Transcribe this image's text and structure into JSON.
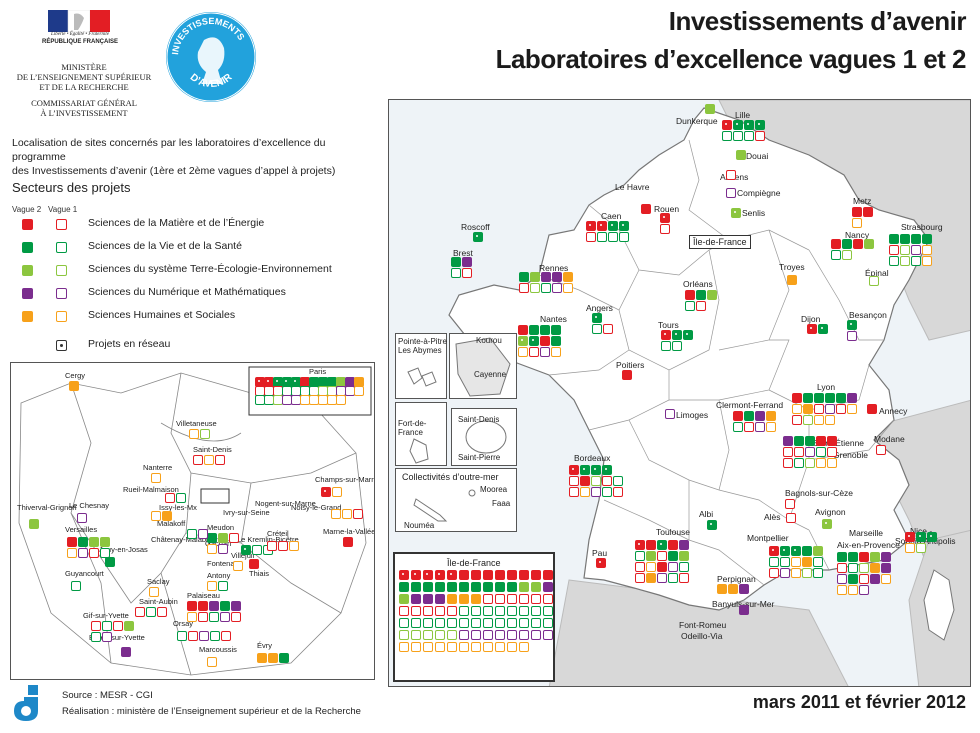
{
  "header": {
    "title_line1": "Investissements d’avenir",
    "title_line2": "Laboratoires d’excellence vagues 1 et 2",
    "republique": "RÉPUBLIQUE FRANÇAISE",
    "motto": "Liberté • Égalité • Fraternité",
    "ministry_lines": [
      "MINISTÈRE",
      "DE L’ENSEIGNEMENT SUPÉRIEUR",
      "ET DE LA RECHERCHE",
      "COMMISSARIAT GÉNÉRAL",
      "À L’INVESTISSEMENT"
    ],
    "badge_text_top": "INVESTISSEMENTS",
    "badge_text_bottom": "D’AVENIR"
  },
  "intro": {
    "line1": "Localisation de sites concernés par les laboratoires d’excellence du programme",
    "line2": "des Investissements d’avenir (1ère et 2ème vagues d’appel à projets)"
  },
  "legend": {
    "title": "Secteurs des projets",
    "vague2": "Vague 2",
    "vague1": "Vague 1",
    "items": [
      {
        "label": "Sciences de la Matière et de l’Énergie",
        "color": "#e31e24"
      },
      {
        "label": "Sciences de la Vie et de la Santé",
        "color": "#009a44"
      },
      {
        "label": "Sciences du système Terre-Écologie-Environnement",
        "color": "#8cc63f"
      },
      {
        "label": "Sciences du Numérique et Mathématiques",
        "color": "#7b2d8e"
      },
      {
        "label": "Sciences Humaines et Sociales",
        "color": "#f7a11a"
      }
    ],
    "network": "Projets en réseau"
  },
  "footer": {
    "source": "Source : MESR - CGI",
    "realisation": "Réalisation : ministère de l’Enseignement supérieur et de la Recherche",
    "date": "mars 2011 et février 2012"
  },
  "map": {
    "cities": [
      {
        "name": "Lille"
      },
      {
        "name": "Dunkerque"
      },
      {
        "name": "Douai"
      },
      {
        "name": "Amiens"
      },
      {
        "name": "Compiègne"
      },
      {
        "name": "Senlis"
      },
      {
        "name": "Le Havre"
      },
      {
        "name": "Rouen"
      },
      {
        "name": "Caen"
      },
      {
        "name": "Roscoff"
      },
      {
        "name": "Brest"
      },
      {
        "name": "Rennes"
      },
      {
        "name": "Metz"
      },
      {
        "name": "Strasbourg"
      },
      {
        "name": "Nancy"
      },
      {
        "name": "Épinal"
      },
      {
        "name": "Troyes"
      },
      {
        "name": "Orléans"
      },
      {
        "name": "Angers"
      },
      {
        "name": "Nantes"
      },
      {
        "name": "Tours"
      },
      {
        "name": "Dijon"
      },
      {
        "name": "Besançon"
      },
      {
        "name": "Poitiers"
      },
      {
        "name": "Lyon"
      },
      {
        "name": "Annecy"
      },
      {
        "name": "Limoges"
      },
      {
        "name": "Clermont-Ferrand"
      },
      {
        "name": "Modane"
      },
      {
        "name": "Saint-Étienne"
      },
      {
        "name": "Grenoble"
      },
      {
        "name": "Bordeaux"
      },
      {
        "name": "Bagnols-sur-Cèze"
      },
      {
        "name": "Avignon"
      },
      {
        "name": "Alès"
      },
      {
        "name": "Albi"
      },
      {
        "name": "Nice -"
      },
      {
        "name": "Sophia Antipolis"
      },
      {
        "name": "Marseille"
      },
      {
        "name": "Aix-en-Provence"
      },
      {
        "name": "Montpellier"
      },
      {
        "name": "Toulouse"
      },
      {
        "name": "Pau"
      },
      {
        "name": "Perpignan"
      },
      {
        "name": "Banyuls-sur-Mer"
      },
      {
        "name": "Font-Romeu"
      },
      {
        "name": "Odeillo-Via"
      }
    ],
    "idf_label": "Île-de-France",
    "idf_box_label": "Île-de-France",
    "insets": {
      "guadeloupe": "Pointe-à-Pitre\nLes Abymes",
      "guyane_a": "Kourou",
      "guyane_b": "Cayenne",
      "martinique": "Fort-de-\nFrance",
      "reunion_a": "Saint-Denis",
      "reunion_b": "Saint-Pierre",
      "com": "Collectivités d’outre-mer",
      "moorea": "Moorea",
      "faaa": "Faaa",
      "noumea": "Nouméa"
    }
  },
  "idf_map": {
    "cities": [
      "Cergy",
      "Paris",
      "Villetaneuse",
      "Saint-Denis",
      "Nanterre",
      "Rueil-Malmaison",
      "Issy-les-Mx",
      "Ivry-sur-Seine",
      "Nogent-sur-Marne",
      "Noisy-le-Grand",
      "Champs-sur-Marne",
      "Marne-la-Vallée",
      "Le Chesnay",
      "Thiverval-Grignon",
      "Versailles",
      "Malakoff",
      "Meudon",
      "Châtenay-Malabry",
      "Gachan",
      "Le Kremlin-Bicêtre",
      "Créteil",
      "Villejuif",
      "Fontenay",
      "Antony",
      "Thiais",
      "Jouy-en-Josas",
      "Guyancourt",
      "Saclay",
      "Saint-Aubin",
      "Palaiseau",
      "Gif-sur-Yvette",
      "Orsay",
      "Bures-sur-Yvette",
      "Marcoussis",
      "Évry"
    ],
    "paris_box_label": "Paris",
    "paris_legend_label": "Paris"
  }
}
